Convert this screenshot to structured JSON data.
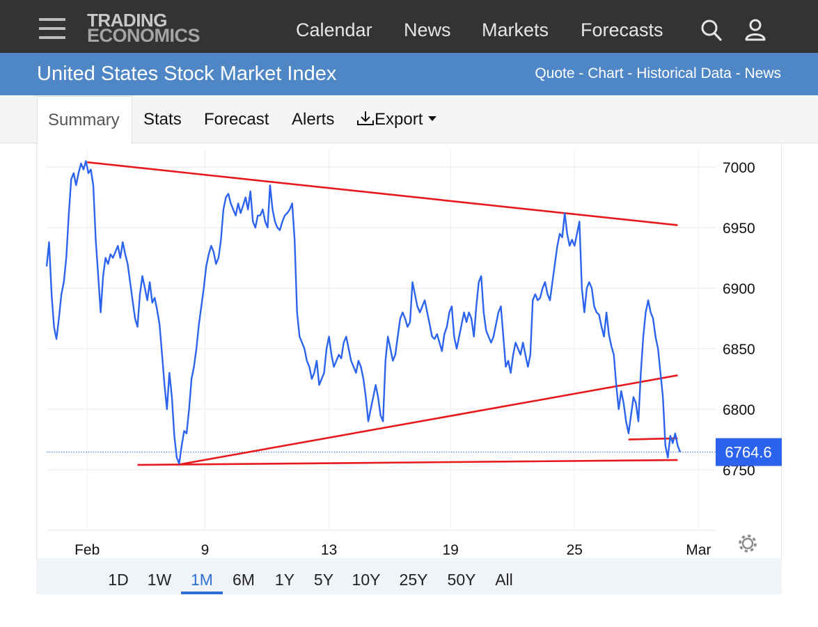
{
  "header": {
    "logo_line1": "TRADING",
    "logo_line2": "ECONOMICS",
    "nav": [
      "Calendar",
      "News",
      "Markets",
      "Forecasts"
    ],
    "icons": [
      "menu-icon",
      "search-icon",
      "user-icon"
    ]
  },
  "titlebar": {
    "title": "United States Stock Market Index",
    "links": [
      "Quote",
      "Chart",
      "Historical Data",
      "News"
    ],
    "separator": " - "
  },
  "tabs": {
    "summary": "Summary",
    "stats": "Stats",
    "forecast": "Forecast",
    "alerts": "Alerts",
    "export": "Export"
  },
  "ranges": {
    "items": [
      "1D",
      "1W",
      "1M",
      "6M",
      "1Y",
      "5Y",
      "10Y",
      "25Y",
      "50Y",
      "All"
    ],
    "selected": "1M"
  },
  "colors": {
    "series": "#2b63ef",
    "trendline": "#e8191c",
    "price_badge": "#2b63ef",
    "header_bg": "#333333",
    "title_bg": "#4f86c6"
  },
  "chart_data": {
    "type": "line",
    "title": "",
    "xlabel": "",
    "ylabel": "",
    "x_ticks": [
      {
        "label": "Feb",
        "x": 0.95
      },
      {
        "label": "9",
        "x": 5.75
      },
      {
        "label": "13",
        "x": 10.8
      },
      {
        "label": "19",
        "x": 15.75
      },
      {
        "label": "25",
        "x": 20.8
      },
      {
        "label": "Mar",
        "x": 25.85
      }
    ],
    "xlim": [
      -0.7,
      26.35
    ],
    "ylim": [
      6700,
      7015
    ],
    "y_ticks": [
      6750,
      6800,
      6850,
      6900,
      6950,
      7000
    ],
    "grid": true,
    "series": [
      {
        "values": [
          [
            -0.7,
            6918
          ],
          [
            -0.6,
            6938
          ],
          [
            -0.5,
            6895
          ],
          [
            -0.4,
            6868
          ],
          [
            -0.3,
            6858
          ],
          [
            -0.2,
            6875
          ],
          [
            -0.1,
            6895
          ],
          [
            0.0,
            6905
          ],
          [
            0.1,
            6925
          ],
          [
            0.2,
            6960
          ],
          [
            0.3,
            6990
          ],
          [
            0.4,
            6995
          ],
          [
            0.5,
            6985
          ],
          [
            0.6,
            6995
          ],
          [
            0.7,
            7003
          ],
          [
            0.8,
            6998
          ],
          [
            0.9,
            7005
          ],
          [
            1.0,
            6995
          ],
          [
            1.1,
            6998
          ],
          [
            1.2,
            6985
          ],
          [
            1.3,
            6940
          ],
          [
            1.4,
            6910
          ],
          [
            1.5,
            6880
          ],
          [
            1.6,
            6910
          ],
          [
            1.7,
            6925
          ],
          [
            1.8,
            6920
          ],
          [
            1.9,
            6928
          ],
          [
            2.0,
            6925
          ],
          [
            2.1,
            6930
          ],
          [
            2.2,
            6935
          ],
          [
            2.3,
            6925
          ],
          [
            2.4,
            6938
          ],
          [
            2.5,
            6928
          ],
          [
            2.6,
            6920
          ],
          [
            2.7,
            6905
          ],
          [
            2.8,
            6890
          ],
          [
            2.9,
            6875
          ],
          [
            3.0,
            6868
          ],
          [
            3.1,
            6895
          ],
          [
            3.2,
            6910
          ],
          [
            3.3,
            6900
          ],
          [
            3.4,
            6890
          ],
          [
            3.5,
            6905
          ],
          [
            3.6,
            6888
          ],
          [
            3.7,
            6892
          ],
          [
            3.8,
            6882
          ],
          [
            3.9,
            6870
          ],
          [
            4.0,
            6845
          ],
          [
            4.1,
            6820
          ],
          [
            4.2,
            6800
          ],
          [
            4.3,
            6830
          ],
          [
            4.4,
            6810
          ],
          [
            4.5,
            6778
          ],
          [
            4.6,
            6760
          ],
          [
            4.7,
            6755
          ],
          [
            4.8,
            6770
          ],
          [
            4.9,
            6782
          ],
          [
            5.0,
            6780
          ],
          [
            5.1,
            6800
          ],
          [
            5.2,
            6825
          ],
          [
            5.3,
            6835
          ],
          [
            5.4,
            6850
          ],
          [
            5.5,
            6870
          ],
          [
            5.6,
            6885
          ],
          [
            5.7,
            6900
          ],
          [
            5.8,
            6918
          ],
          [
            5.9,
            6928
          ],
          [
            6.0,
            6935
          ],
          [
            6.1,
            6930
          ],
          [
            6.2,
            6920
          ],
          [
            6.3,
            6925
          ],
          [
            6.4,
            6940
          ],
          [
            6.5,
            6965
          ],
          [
            6.6,
            6975
          ],
          [
            6.7,
            6978
          ],
          [
            6.8,
            6970
          ],
          [
            6.9,
            6965
          ],
          [
            7.0,
            6960
          ],
          [
            7.1,
            6970
          ],
          [
            7.2,
            6962
          ],
          [
            7.3,
            6968
          ],
          [
            7.4,
            6975
          ],
          [
            7.5,
            6965
          ],
          [
            7.6,
            6980
          ],
          [
            7.7,
            6955
          ],
          [
            7.8,
            6950
          ],
          [
            7.9,
            6960
          ],
          [
            8.0,
            6960
          ],
          [
            8.1,
            6965
          ],
          [
            8.2,
            6955
          ],
          [
            8.3,
            6950
          ],
          [
            8.4,
            6985
          ],
          [
            8.5,
            6965
          ],
          [
            8.6,
            6955
          ],
          [
            8.7,
            6950
          ],
          [
            8.8,
            6948
          ],
          [
            8.9,
            6955
          ],
          [
            9.0,
            6960
          ],
          [
            9.1,
            6962
          ],
          [
            9.2,
            6965
          ],
          [
            9.3,
            6970
          ],
          [
            9.4,
            6940
          ],
          [
            9.5,
            6880
          ],
          [
            9.6,
            6860
          ],
          [
            9.7,
            6855
          ],
          [
            9.8,
            6850
          ],
          [
            9.9,
            6840
          ],
          [
            10.0,
            6835
          ],
          [
            10.1,
            6825
          ],
          [
            10.2,
            6830
          ],
          [
            10.3,
            6840
          ],
          [
            10.4,
            6820
          ],
          [
            10.5,
            6825
          ],
          [
            10.6,
            6830
          ],
          [
            10.7,
            6850
          ],
          [
            10.8,
            6860
          ],
          [
            10.9,
            6845
          ],
          [
            11.0,
            6835
          ],
          [
            11.1,
            6840
          ],
          [
            11.2,
            6845
          ],
          [
            11.3,
            6842
          ],
          [
            11.4,
            6855
          ],
          [
            11.5,
            6860
          ],
          [
            11.6,
            6850
          ],
          [
            11.7,
            6840
          ],
          [
            11.8,
            6835
          ],
          [
            11.9,
            6830
          ],
          [
            12.0,
            6840
          ],
          [
            12.1,
            6835
          ],
          [
            12.2,
            6825
          ],
          [
            12.3,
            6810
          ],
          [
            12.4,
            6790
          ],
          [
            12.5,
            6800
          ],
          [
            12.6,
            6810
          ],
          [
            12.7,
            6820
          ],
          [
            12.8,
            6810
          ],
          [
            12.9,
            6795
          ],
          [
            13.0,
            6790
          ],
          [
            13.1,
            6840
          ],
          [
            13.2,
            6860
          ],
          [
            13.3,
            6850
          ],
          [
            13.4,
            6840
          ],
          [
            13.5,
            6845
          ],
          [
            13.6,
            6860
          ],
          [
            13.7,
            6875
          ],
          [
            13.8,
            6880
          ],
          [
            13.9,
            6875
          ],
          [
            14.0,
            6868
          ],
          [
            14.1,
            6872
          ],
          [
            14.2,
            6905
          ],
          [
            14.3,
            6895
          ],
          [
            14.4,
            6885
          ],
          [
            14.5,
            6880
          ],
          [
            14.6,
            6885
          ],
          [
            14.7,
            6890
          ],
          [
            14.8,
            6880
          ],
          [
            14.9,
            6870
          ],
          [
            15.0,
            6860
          ],
          [
            15.1,
            6858
          ],
          [
            15.2,
            6862
          ],
          [
            15.3,
            6855
          ],
          [
            15.4,
            6848
          ],
          [
            15.5,
            6862
          ],
          [
            15.6,
            6868
          ],
          [
            15.7,
            6880
          ],
          [
            15.8,
            6885
          ],
          [
            15.9,
            6860
          ],
          [
            16.0,
            6850
          ],
          [
            16.1,
            6860
          ],
          [
            16.2,
            6870
          ],
          [
            16.3,
            6880
          ],
          [
            16.4,
            6872
          ],
          [
            16.5,
            6880
          ],
          [
            16.6,
            6875
          ],
          [
            16.7,
            6860
          ],
          [
            16.8,
            6885
          ],
          [
            16.9,
            6905
          ],
          [
            17.0,
            6910
          ],
          [
            17.1,
            6880
          ],
          [
            17.2,
            6865
          ],
          [
            17.3,
            6860
          ],
          [
            17.4,
            6855
          ],
          [
            17.5,
            6860
          ],
          [
            17.6,
            6870
          ],
          [
            17.7,
            6880
          ],
          [
            17.8,
            6885
          ],
          [
            17.9,
            6860
          ],
          [
            18.0,
            6835
          ],
          [
            18.1,
            6840
          ],
          [
            18.2,
            6830
          ],
          [
            18.3,
            6845
          ],
          [
            18.4,
            6855
          ],
          [
            18.5,
            6850
          ],
          [
            18.6,
            6845
          ],
          [
            18.7,
            6855
          ],
          [
            18.8,
            6845
          ],
          [
            18.9,
            6835
          ],
          [
            19.0,
            6845
          ],
          [
            19.1,
            6890
          ],
          [
            19.2,
            6895
          ],
          [
            19.3,
            6890
          ],
          [
            19.4,
            6892
          ],
          [
            19.5,
            6900
          ],
          [
            19.6,
            6905
          ],
          [
            19.7,
            6895
          ],
          [
            19.8,
            6890
          ],
          [
            19.9,
            6905
          ],
          [
            20.0,
            6920
          ],
          [
            20.1,
            6935
          ],
          [
            20.2,
            6945
          ],
          [
            20.3,
            6942
          ],
          [
            20.4,
            6962
          ],
          [
            20.5,
            6945
          ],
          [
            20.6,
            6935
          ],
          [
            20.7,
            6940
          ],
          [
            20.8,
            6935
          ],
          [
            20.9,
            6945
          ],
          [
            21.0,
            6955
          ],
          [
            21.1,
            6900
          ],
          [
            21.2,
            6880
          ],
          [
            21.3,
            6900
          ],
          [
            21.4,
            6905
          ],
          [
            21.5,
            6900
          ],
          [
            21.6,
            6885
          ],
          [
            21.7,
            6880
          ],
          [
            21.8,
            6878
          ],
          [
            21.9,
            6868
          ],
          [
            22.0,
            6860
          ],
          [
            22.1,
            6880
          ],
          [
            22.2,
            6862
          ],
          [
            22.3,
            6852
          ],
          [
            22.4,
            6845
          ],
          [
            22.5,
            6820
          ],
          [
            22.6,
            6800
          ],
          [
            22.7,
            6815
          ],
          [
            22.8,
            6805
          ],
          [
            22.9,
            6790
          ],
          [
            23.0,
            6780
          ],
          [
            23.1,
            6795
          ],
          [
            23.2,
            6810
          ],
          [
            23.3,
            6805
          ],
          [
            23.4,
            6790
          ],
          [
            23.5,
            6830
          ],
          [
            23.6,
            6860
          ],
          [
            23.7,
            6880
          ],
          [
            23.8,
            6890
          ],
          [
            23.9,
            6880
          ],
          [
            24.0,
            6875
          ],
          [
            24.1,
            6860
          ],
          [
            24.2,
            6850
          ],
          [
            24.3,
            6830
          ],
          [
            24.4,
            6810
          ],
          [
            24.5,
            6770
          ],
          [
            24.6,
            6760
          ],
          [
            24.7,
            6778
          ],
          [
            24.8,
            6772
          ],
          [
            24.9,
            6780
          ],
          [
            25.0,
            6770
          ],
          [
            25.1,
            6764.6
          ]
        ]
      }
    ],
    "trendlines": [
      [
        [
          0.95,
          7004
        ],
        [
          25.0,
          6952
        ]
      ],
      [
        [
          4.6,
          6754
        ],
        [
          25.0,
          6828
        ]
      ],
      [
        [
          3.0,
          6754
        ],
        [
          25.0,
          6758
        ]
      ],
      [
        [
          23.0,
          6775
        ],
        [
          25.0,
          6776
        ]
      ]
    ],
    "last_value": 6764.6
  }
}
